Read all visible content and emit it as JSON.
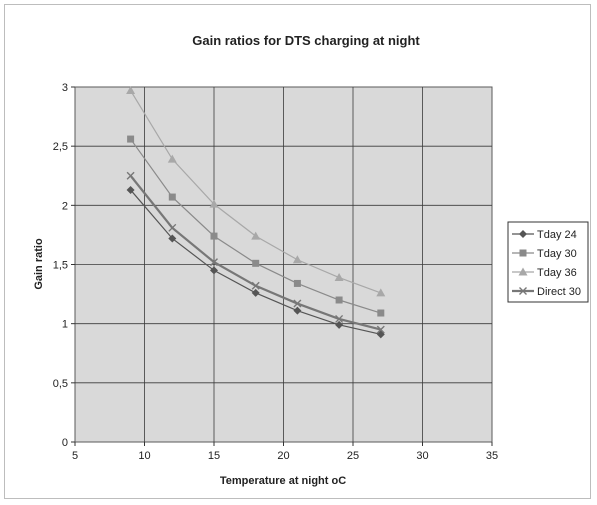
{
  "chart_data": {
    "type": "line",
    "title": "Gain ratios for DTS charging at night",
    "xlabel": "Temperature at night oC",
    "ylabel": "Gain ratio",
    "xlim": [
      5,
      35
    ],
    "ylim": [
      0,
      3
    ],
    "x_ticks": [
      "5",
      "10",
      "15",
      "20",
      "25",
      "30",
      "35"
    ],
    "y_ticks": [
      "0",
      "0,5",
      "1",
      "1,5",
      "2",
      "2,5",
      "3"
    ],
    "grid": true,
    "legend_position": "right",
    "x": [
      9,
      12,
      15,
      18,
      21,
      24,
      27
    ],
    "series": [
      {
        "name": "Tday 24",
        "marker": "diamond",
        "color": "#555555",
        "values": [
          2.13,
          1.72,
          1.45,
          1.26,
          1.11,
          0.99,
          0.91
        ]
      },
      {
        "name": "Tday 30",
        "marker": "square",
        "color": "#8a8a8a",
        "values": [
          2.56,
          2.07,
          1.74,
          1.51,
          1.34,
          1.2,
          1.09
        ]
      },
      {
        "name": "Tday 36",
        "marker": "triangle",
        "color": "#a8a8a8",
        "values": [
          2.97,
          2.39,
          2.01,
          1.74,
          1.54,
          1.39,
          1.26
        ]
      },
      {
        "name": "Direct 30",
        "marker": "x",
        "color": "#777777",
        "values": [
          2.25,
          1.81,
          1.52,
          1.32,
          1.17,
          1.04,
          0.95
        ]
      }
    ],
    "colors": {
      "plot_background": "#d9d9d9",
      "gridline": "#3a3a3a",
      "frame": "#bdbdbd"
    }
  }
}
